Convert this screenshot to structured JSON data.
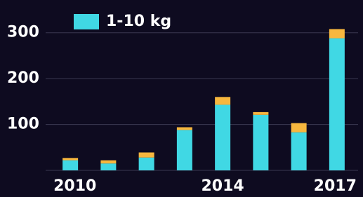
{
  "chart_data": {
    "type": "stacked-bar",
    "categories": [
      "2010",
      null,
      null,
      null,
      "2014",
      null,
      null,
      "2017"
    ],
    "series": [
      {
        "name": "1-10 kg",
        "color": "#40d8e4",
        "values": [
          22,
          15,
          28,
          88,
          143,
          121,
          83,
          288
        ]
      },
      {
        "color": "#f7b73e",
        "values": [
          5,
          7,
          11,
          6,
          17,
          6,
          20,
          20
        ]
      }
    ],
    "ylim": [
      0,
      350
    ],
    "yticks": [
      100,
      200,
      300
    ],
    "grid": true,
    "legend": "top-left"
  }
}
